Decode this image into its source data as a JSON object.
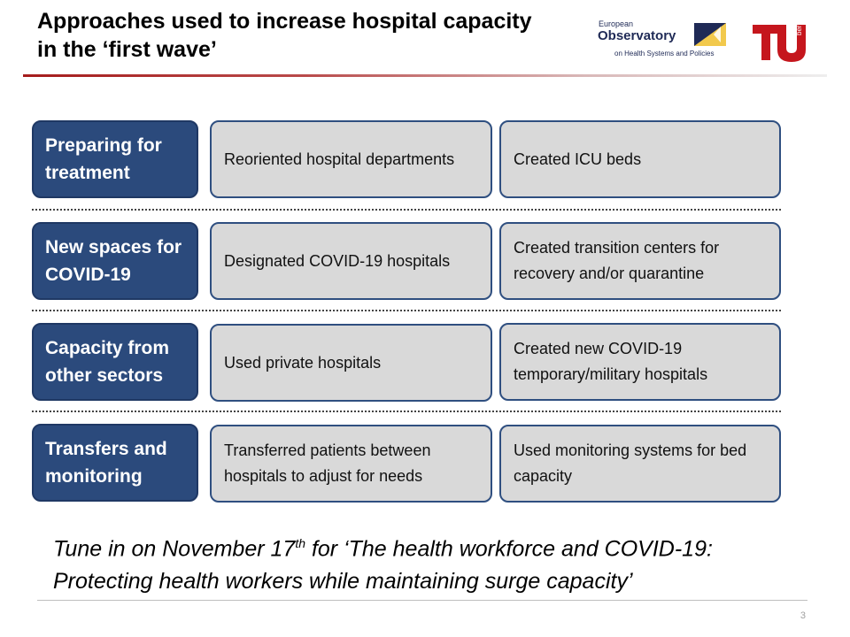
{
  "header": {
    "title": "Approaches used to increase hospital capacity in the ‘first wave’",
    "observatory_logo": {
      "line1": "European",
      "line2": "Observatory",
      "line3": "on Health Systems and Policies",
      "colors": {
        "navy": "#1f2a56",
        "gold": "#f2c94c"
      }
    },
    "tu_logo": {
      "mark": "TU",
      "tag": "berlin",
      "color": "#c5161d"
    }
  },
  "rows": [
    {
      "label": "Preparing for treatment",
      "cells": [
        "Reoriented hospital departments",
        "Created ICU beds"
      ]
    },
    {
      "label": "New spaces for COVID-19",
      "cells": [
        "Designated COVID-19 hospitals",
        "Created transition centers for recovery and/or quarantine"
      ]
    },
    {
      "label": "Capacity from other sectors",
      "cells": [
        "Used private hospitals",
        "Created new COVID-19 temporary/military hospitals"
      ]
    },
    {
      "label": "Transfers and monitoring",
      "cells": [
        "Transferred patients between hospitals to adjust for needs",
        "Used monitoring systems for bed capacity"
      ]
    }
  ],
  "footer": {
    "note_before": "Tune in on November 17",
    "note_sup": "th",
    "note_after": " for ‘The health workforce and COVID-19: Protecting health workers while maintaining surge capacity’",
    "page_number": "3"
  },
  "colors": {
    "label_fill": "#2b4a7c",
    "cell_fill": "#d9d9d9",
    "cell_border": "#2f4f80",
    "title_rule": "#a51c1c"
  }
}
